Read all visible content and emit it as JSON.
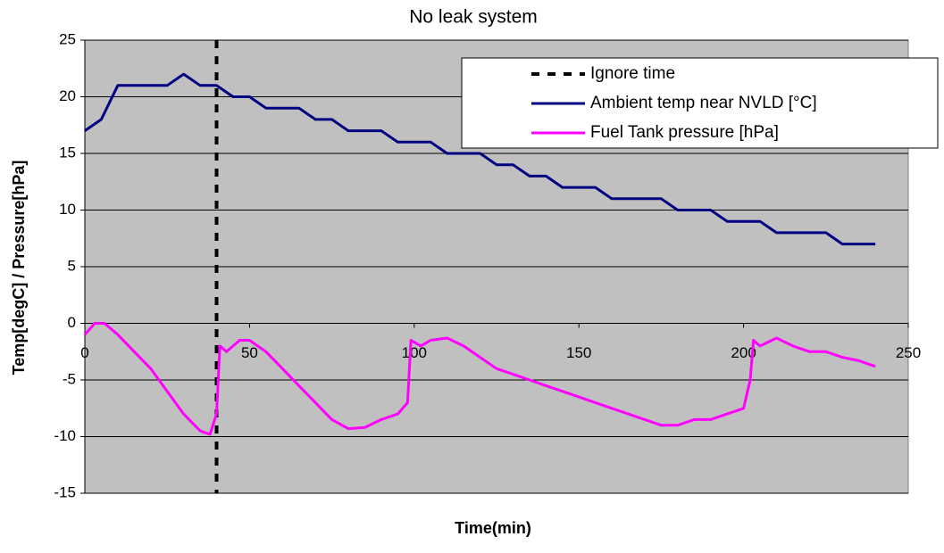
{
  "chart_data": {
    "type": "line",
    "title": "No leak system",
    "x_label": "Time(min)",
    "y_label": "Temp[degC] / Pressure[hPa]",
    "xlim": [
      0,
      250
    ],
    "xticks": [
      0,
      50,
      100,
      150,
      200,
      250
    ],
    "ylim": [
      -15,
      25
    ],
    "yticks": [
      -15,
      -10,
      -5,
      0,
      5,
      10,
      15,
      20,
      25
    ],
    "grid": true,
    "legend": "upper right",
    "series": [
      {
        "name": "Ignore time",
        "color": "#000000",
        "dashed": true,
        "x": [
          40,
          40
        ],
        "values": [
          25,
          -15
        ]
      },
      {
        "name": "Ambient temp near NVLD [°C]",
        "color": "#000080",
        "x": [
          0,
          5,
          10,
          15,
          20,
          25,
          30,
          35,
          40,
          45,
          50,
          55,
          60,
          65,
          70,
          75,
          80,
          85,
          90,
          95,
          100,
          105,
          110,
          115,
          120,
          125,
          130,
          135,
          140,
          145,
          150,
          155,
          160,
          165,
          170,
          175,
          180,
          185,
          190,
          195,
          200,
          205,
          210,
          215,
          220,
          225,
          230,
          235,
          240
        ],
        "values": [
          17,
          18,
          21,
          21,
          21,
          21,
          22,
          21,
          21,
          20,
          20,
          19,
          19,
          19,
          18,
          18,
          17,
          17,
          17,
          16,
          16,
          16,
          15,
          15,
          15,
          14,
          14,
          13,
          13,
          12,
          12,
          12,
          11,
          11,
          11,
          11,
          10,
          10,
          10,
          9,
          9,
          9,
          8,
          8,
          8,
          8,
          7,
          7,
          7
        ]
      },
      {
        "name": "Fuel Tank pressure [hPa]",
        "color": "#ff00ff",
        "x": [
          0,
          3,
          6,
          10,
          15,
          20,
          25,
          30,
          35,
          38,
          40,
          41,
          43,
          47,
          50,
          55,
          60,
          65,
          70,
          75,
          80,
          85,
          90,
          95,
          98,
          99,
          102,
          105,
          110,
          115,
          120,
          125,
          130,
          135,
          140,
          145,
          150,
          155,
          160,
          165,
          170,
          175,
          180,
          185,
          190,
          195,
          200,
          202,
          203,
          205,
          210,
          215,
          220,
          225,
          230,
          235,
          240
        ],
        "values": [
          -1,
          0,
          0,
          -1,
          -2.5,
          -4,
          -6,
          -8,
          -9.5,
          -9.8,
          -8,
          -2,
          -2.5,
          -1.5,
          -1.5,
          -2.5,
          -4,
          -5.5,
          -7,
          -8.5,
          -9.3,
          -9.2,
          -8.5,
          -8,
          -7,
          -1.5,
          -2,
          -1.5,
          -1.3,
          -2,
          -3,
          -4,
          -4.5,
          -5,
          -5.5,
          -6,
          -6.5,
          -7,
          -7.5,
          -8,
          -8.5,
          -9,
          -9,
          -8.5,
          -8.5,
          -8,
          -7.5,
          -5,
          -1.5,
          -2,
          -1.3,
          -2,
          -2.5,
          -2.5,
          -3,
          -3.3,
          -3.8
        ]
      }
    ]
  }
}
